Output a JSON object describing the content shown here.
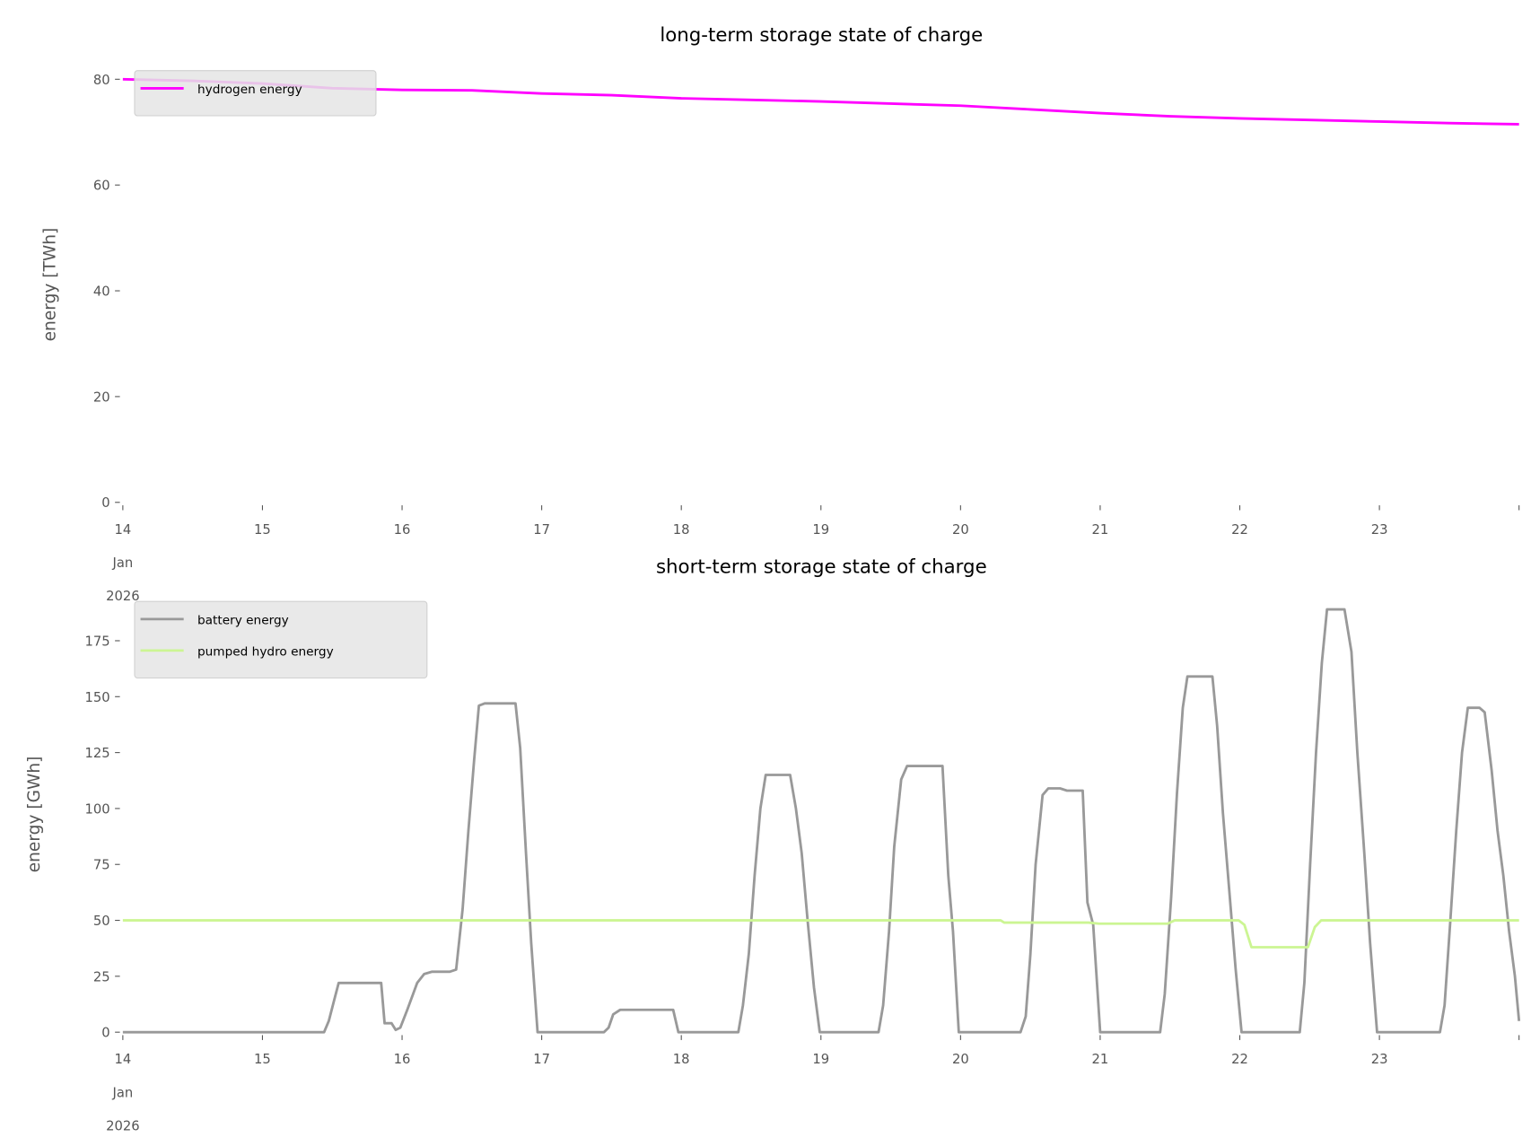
{
  "chart_data": [
    {
      "type": "line",
      "title": "long-term storage state of charge",
      "ylabel": "energy [TWh]",
      "xlabel": "",
      "x_unit": "hours since 14 Jan 2026 00:00",
      "xlim": [
        0,
        240
      ],
      "ylim": [
        0,
        82
      ],
      "yticks": [
        0,
        20,
        40,
        60,
        80
      ],
      "xticks": [
        {
          "hour": 0,
          "label": [
            "14",
            "Jan",
            "2026"
          ]
        },
        {
          "hour": 24,
          "label": [
            "15"
          ]
        },
        {
          "hour": 48,
          "label": [
            "16"
          ]
        },
        {
          "hour": 72,
          "label": [
            "17"
          ]
        },
        {
          "hour": 96,
          "label": [
            "18"
          ]
        },
        {
          "hour": 120,
          "label": [
            "19"
          ]
        },
        {
          "hour": 144,
          "label": [
            "20"
          ]
        },
        {
          "hour": 168,
          "label": [
            "21"
          ]
        },
        {
          "hour": 192,
          "label": [
            "22"
          ]
        },
        {
          "hour": 216,
          "label": [
            "23"
          ]
        },
        {
          "hour": 240,
          "label": [
            ""
          ]
        }
      ],
      "legend_position": "top-left",
      "series": [
        {
          "name": "hydrogen energy",
          "color": "#ff00ff",
          "points": [
            [
              0,
              80
            ],
            [
              12,
              79.7
            ],
            [
              24,
              79.2
            ],
            [
              36,
              78.3
            ],
            [
              48,
              78
            ],
            [
              60,
              77.9
            ],
            [
              72,
              77.3
            ],
            [
              84,
              77
            ],
            [
              96,
              76.4
            ],
            [
              108,
              76.1
            ],
            [
              120,
              75.8
            ],
            [
              132,
              75.4
            ],
            [
              144,
              75
            ],
            [
              156,
              74.3
            ],
            [
              168,
              73.6
            ],
            [
              180,
              73
            ],
            [
              192,
              72.6
            ],
            [
              204,
              72.3
            ],
            [
              216,
              72
            ],
            [
              228,
              71.7
            ],
            [
              240,
              71.5
            ]
          ]
        }
      ]
    },
    {
      "type": "line",
      "title": "short-term storage state of charge",
      "ylabel": "energy [GWh]",
      "xlabel": "",
      "x_unit": "hours since 14 Jan 2026 00:00",
      "xlim": [
        0,
        240
      ],
      "ylim": [
        0,
        193
      ],
      "yticks": [
        0,
        25,
        50,
        75,
        100,
        125,
        150,
        175
      ],
      "xticks": [
        {
          "hour": 0,
          "label": [
            "14",
            "Jan",
            "2026"
          ]
        },
        {
          "hour": 24,
          "label": [
            "15"
          ]
        },
        {
          "hour": 48,
          "label": [
            "16"
          ]
        },
        {
          "hour": 72,
          "label": [
            "17"
          ]
        },
        {
          "hour": 96,
          "label": [
            "18"
          ]
        },
        {
          "hour": 120,
          "label": [
            "19"
          ]
        },
        {
          "hour": 144,
          "label": [
            "20"
          ]
        },
        {
          "hour": 168,
          "label": [
            "21"
          ]
        },
        {
          "hour": 192,
          "label": [
            "22"
          ]
        },
        {
          "hour": 216,
          "label": [
            "23"
          ]
        },
        {
          "hour": 240,
          "label": [
            ""
          ]
        }
      ],
      "legend_position": "top-left",
      "series": [
        {
          "name": "battery energy",
          "color": "#999999",
          "points": [
            [
              0,
              0
            ],
            [
              34.6,
              0
            ],
            [
              35.4,
              5
            ],
            [
              36.4,
              15
            ],
            [
              37.1,
              22
            ],
            [
              44.4,
              22
            ],
            [
              45,
              4
            ],
            [
              46.2,
              4
            ],
            [
              46.9,
              1
            ],
            [
              47.7,
              2
            ],
            [
              48.9,
              10
            ],
            [
              50.6,
              22
            ],
            [
              51.8,
              26
            ],
            [
              53.1,
              27
            ],
            [
              56.2,
              27
            ],
            [
              57.3,
              28
            ],
            [
              58.4,
              55
            ],
            [
              59.4,
              90
            ],
            [
              60.4,
              122
            ],
            [
              61.2,
              146
            ],
            [
              62.2,
              147
            ],
            [
              67.5,
              147
            ],
            [
              68.3,
              127
            ],
            [
              69.3,
              80
            ],
            [
              70.2,
              40
            ],
            [
              71.3,
              0
            ],
            [
              82.7,
              0
            ],
            [
              83.5,
              2
            ],
            [
              84.3,
              8
            ],
            [
              85.5,
              10
            ],
            [
              94.6,
              10
            ],
            [
              95.5,
              0
            ],
            [
              105.8,
              0
            ],
            [
              106.6,
              12
            ],
            [
              107.6,
              35
            ],
            [
              108.6,
              70
            ],
            [
              109.6,
              100
            ],
            [
              110.5,
              115
            ],
            [
              114.7,
              115
            ],
            [
              115.7,
              100
            ],
            [
              116.7,
              80
            ],
            [
              117.7,
              50
            ],
            [
              118.8,
              20
            ],
            [
              119.8,
              0
            ],
            [
              129.9,
              0
            ],
            [
              130.7,
              12
            ],
            [
              131.7,
              45
            ],
            [
              132.6,
              83
            ],
            [
              133.8,
              113
            ],
            [
              134.8,
              119
            ],
            [
              140.9,
              119
            ],
            [
              141.9,
              70
            ],
            [
              142.7,
              45
            ],
            [
              143.7,
              0
            ],
            [
              154.3,
              0
            ],
            [
              155.2,
              7
            ],
            [
              156,
              35
            ],
            [
              156.9,
              75
            ],
            [
              158.1,
              106
            ],
            [
              159.1,
              109
            ],
            [
              161.1,
              109
            ],
            [
              162.3,
              108
            ],
            [
              165,
              108
            ],
            [
              165.8,
              58
            ],
            [
              166.8,
              48
            ],
            [
              168,
              0
            ],
            [
              178.3,
              0
            ],
            [
              179.1,
              17
            ],
            [
              180.2,
              60
            ],
            [
              181.2,
              107
            ],
            [
              182.2,
              145
            ],
            [
              183,
              159
            ],
            [
              187.3,
              159
            ],
            [
              188.1,
              137
            ],
            [
              189.1,
              98
            ],
            [
              190.3,
              60
            ],
            [
              191.3,
              28
            ],
            [
              192.3,
              0
            ],
            [
              202.3,
              0
            ],
            [
              203.1,
              22
            ],
            [
              204.1,
              75
            ],
            [
              205.1,
              125
            ],
            [
              206.1,
              165
            ],
            [
              207,
              189
            ],
            [
              210,
              189
            ],
            [
              211.2,
              170
            ],
            [
              212.2,
              125
            ],
            [
              213.4,
              80
            ],
            [
              214.4,
              40
            ],
            [
              215.6,
              0
            ],
            [
              226.4,
              0
            ],
            [
              227.2,
              12
            ],
            [
              228.2,
              50
            ],
            [
              229.2,
              90
            ],
            [
              230.2,
              125
            ],
            [
              231.2,
              145
            ],
            [
              233.2,
              145
            ],
            [
              234.1,
              143
            ],
            [
              235.3,
              117
            ],
            [
              236.3,
              90
            ],
            [
              237.3,
              70
            ],
            [
              238.3,
              45
            ],
            [
              239.3,
              25
            ],
            [
              240,
              5
            ]
          ]
        },
        {
          "name": "pumped hydro energy",
          "color": "#ccf593",
          "points": [
            [
              0,
              50
            ],
            [
              150.9,
              50
            ],
            [
              151.5,
              49
            ],
            [
              166,
              49
            ],
            [
              167.8,
              48.5
            ],
            [
              179.6,
              48.5
            ],
            [
              180.8,
              50
            ],
            [
              191.8,
              50
            ],
            [
              192.8,
              48
            ],
            [
              194,
              38
            ],
            [
              203.7,
              38
            ],
            [
              204.9,
              47
            ],
            [
              206,
              50
            ],
            [
              240,
              50
            ]
          ]
        }
      ]
    }
  ]
}
